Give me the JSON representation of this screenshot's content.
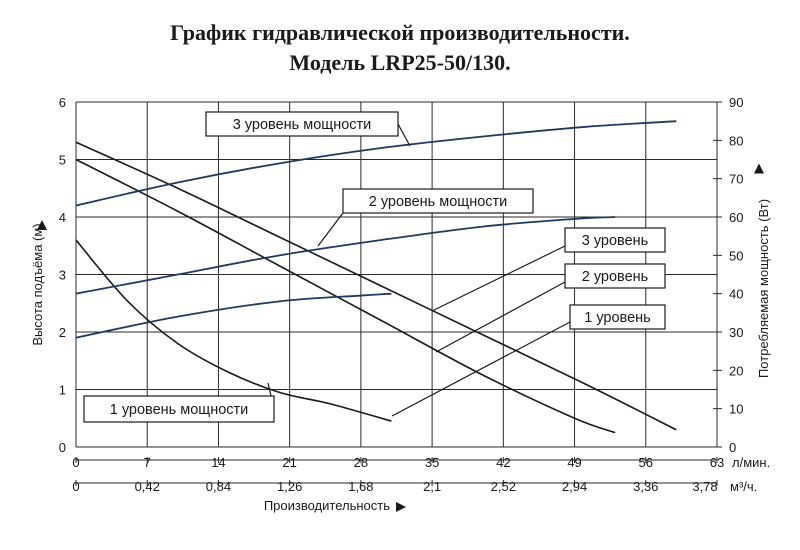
{
  "chart_data": {
    "type": "line",
    "title": "График гидравлической производительности.",
    "subtitle": "Модель LRP25-50/130.",
    "xlabel": "Производительность",
    "x_ticks_lmin": [
      "0",
      "7",
      "14",
      "21",
      "28",
      "35",
      "42",
      "49",
      "56",
      "63"
    ],
    "x_unit_lmin": "л/мин.",
    "x_ticks_m3h": [
      "0",
      "0,42",
      "0,84",
      "1,26",
      "1,68",
      "2,1",
      "2,52",
      "2,94",
      "3,36",
      "3,78"
    ],
    "x_unit_m3h": "м³/ч.",
    "ylabel_left": "Высота подъёма (м)",
    "ylabel_right": "Потребляемая мощность (Вт)",
    "y_left_ticks": [
      "0",
      "1",
      "2",
      "3",
      "4",
      "5",
      "6"
    ],
    "y_right_ticks": [
      "0",
      "10",
      "20",
      "30",
      "40",
      "50",
      "60",
      "70",
      "80",
      "90"
    ],
    "xlim": [
      0,
      63
    ],
    "ylim_left": [
      0,
      6
    ],
    "ylim_right": [
      0,
      90
    ],
    "grid": true,
    "head_curves": [
      {
        "name": "3 уровень",
        "x": [
          0,
          10,
          20,
          30,
          40,
          50,
          59
        ],
        "y": [
          5.3,
          4.5,
          3.65,
          2.8,
          1.95,
          1.1,
          0.3
        ]
      },
      {
        "name": "2 уровень",
        "x": [
          0,
          10,
          20,
          30,
          40,
          49,
          53
        ],
        "y": [
          5.0,
          4.1,
          3.15,
          2.2,
          1.25,
          0.5,
          0.25
        ]
      },
      {
        "name": "1 уровень",
        "x": [
          0,
          5,
          10,
          15,
          20,
          25,
          31
        ],
        "y": [
          3.6,
          2.55,
          1.8,
          1.3,
          0.95,
          0.75,
          0.45
        ]
      }
    ],
    "power_curves": [
      {
        "name": "3 уровень мощности",
        "x": [
          0,
          10,
          20,
          30,
          40,
          50,
          59
        ],
        "y": [
          63,
          69,
          74,
          78,
          81,
          83.5,
          85
        ]
      },
      {
        "name": "2 уровень мощности",
        "x": [
          0,
          10,
          20,
          30,
          40,
          49,
          53
        ],
        "y": [
          40,
          45,
          50,
          54,
          57.5,
          59.5,
          60
        ]
      },
      {
        "name": "1 уровень мощности",
        "x": [
          0,
          10,
          20,
          28,
          31
        ],
        "y": [
          28.5,
          34,
          38,
          39.5,
          40
        ]
      }
    ],
    "annotations": [
      {
        "text": "3 уровень мощности",
        "target": "power-3"
      },
      {
        "text": "2 уровень мощности",
        "target": "power-2"
      },
      {
        "text": "1 уровень мощности",
        "target": "head-1"
      },
      {
        "text": "3 уровень",
        "target": "head-3"
      },
      {
        "text": "2 уровень",
        "target": "head-2"
      },
      {
        "text": "1 уровень",
        "target": "head-1"
      }
    ],
    "colors": {
      "head": "#1a1a1a",
      "power": "#1e3a5f",
      "grid": "#2a2a2a"
    }
  }
}
